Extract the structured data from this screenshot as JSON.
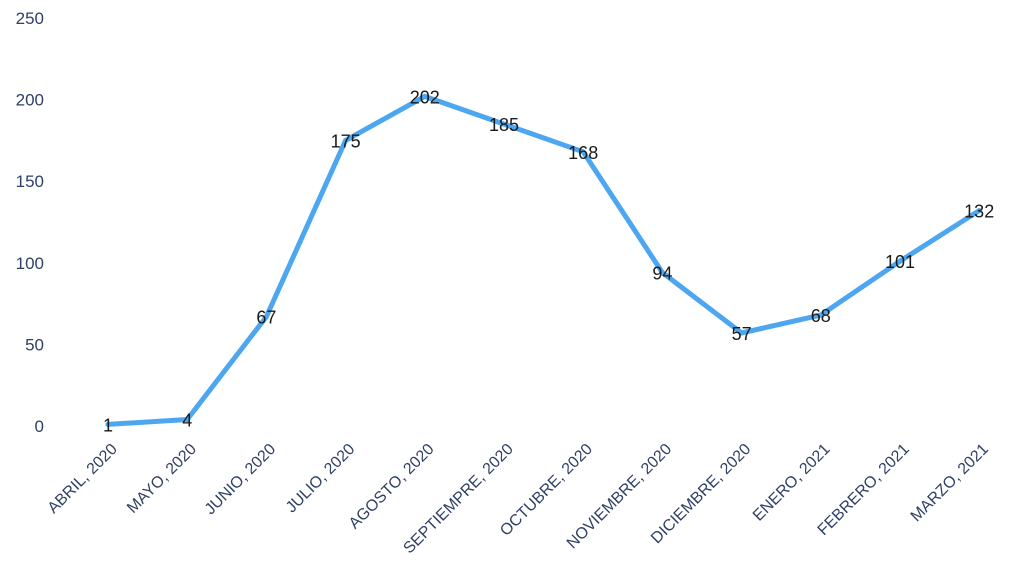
{
  "chart_data": {
    "type": "line",
    "categories": [
      "ABRIL, 2020",
      "MAYO, 2020",
      "JUNIO, 2020",
      "JULIO, 2020",
      "AGOSTO, 2020",
      "SEPTIEMPRE, 2020",
      "OCTUBRE, 2020",
      "NOVIEMBRE, 2020",
      "DICIEMBRE, 2020",
      "ENERO, 2021",
      "FEBRERO, 2021",
      "MARZO, 2021"
    ],
    "series": [
      {
        "values": [
          1,
          4,
          67,
          175,
          202,
          185,
          168,
          94,
          57,
          68,
          101,
          132
        ]
      }
    ],
    "title": "",
    "xlabel": "",
    "ylabel": "",
    "ylim": [
      0,
      250
    ],
    "yticks": [
      "0",
      "50",
      "100",
      "150",
      "200",
      "250"
    ],
    "yticks_values": [
      0,
      50,
      100,
      150,
      200,
      250
    ],
    "grid": false,
    "legend": "none",
    "line_color": "#4da6f0",
    "data_labels": true
  }
}
